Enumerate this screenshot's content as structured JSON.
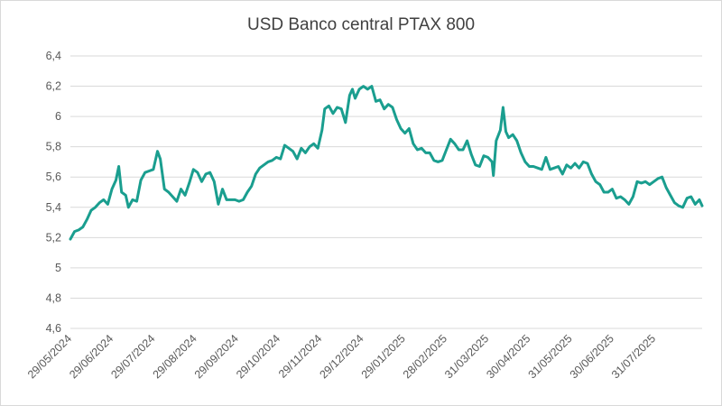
{
  "chart_data": {
    "type": "line",
    "title": "USD Banco central PTAX 800",
    "xlabel": "",
    "ylabel": "",
    "ylim": [
      4.6,
      6.4
    ],
    "grid": true,
    "legend": "none",
    "line_color": "#1a9e8f",
    "y_ticks": [
      "4,6",
      "4,8",
      "5",
      "5,2",
      "5,4",
      "5,6",
      "5,8",
      "6",
      "6,2",
      "6,4"
    ],
    "y_tick_values": [
      4.6,
      4.8,
      5.0,
      5.2,
      5.4,
      5.6,
      5.8,
      6.0,
      6.2,
      6.4
    ],
    "x_ticks": [
      "29/05/2024",
      "29/06/2024",
      "29/07/2024",
      "29/08/2024",
      "29/09/2024",
      "29/10/2024",
      "29/11/2024",
      "29/12/2024",
      "29/01/2025",
      "28/02/2025",
      "31/03/2025",
      "30/04/2025",
      "31/05/2025",
      "30/06/2025",
      "31/07/2025"
    ],
    "x_range": [
      "2024-05-29",
      "2025-08-29"
    ],
    "series": [
      {
        "points": [
          [
            "2024-05-29",
            5.19
          ],
          [
            "2024-06-01",
            5.24
          ],
          [
            "2024-06-04",
            5.25
          ],
          [
            "2024-06-07",
            5.27
          ],
          [
            "2024-06-10",
            5.32
          ],
          [
            "2024-06-13",
            5.38
          ],
          [
            "2024-06-16",
            5.4
          ],
          [
            "2024-06-19",
            5.43
          ],
          [
            "2024-06-22",
            5.45
          ],
          [
            "2024-06-25",
            5.42
          ],
          [
            "2024-06-28",
            5.52
          ],
          [
            "2024-07-01",
            5.58
          ],
          [
            "2024-07-03",
            5.67
          ],
          [
            "2024-07-05",
            5.5
          ],
          [
            "2024-07-08",
            5.48
          ],
          [
            "2024-07-10",
            5.4
          ],
          [
            "2024-07-13",
            5.45
          ],
          [
            "2024-07-16",
            5.44
          ],
          [
            "2024-07-19",
            5.58
          ],
          [
            "2024-07-22",
            5.63
          ],
          [
            "2024-07-25",
            5.64
          ],
          [
            "2024-07-28",
            5.65
          ],
          [
            "2024-07-31",
            5.77
          ],
          [
            "2024-08-02",
            5.72
          ],
          [
            "2024-08-05",
            5.52
          ],
          [
            "2024-08-08",
            5.5
          ],
          [
            "2024-08-11",
            5.47
          ],
          [
            "2024-08-14",
            5.44
          ],
          [
            "2024-08-17",
            5.52
          ],
          [
            "2024-08-20",
            5.48
          ],
          [
            "2024-08-23",
            5.56
          ],
          [
            "2024-08-26",
            5.65
          ],
          [
            "2024-08-29",
            5.63
          ],
          [
            "2024-09-01",
            5.57
          ],
          [
            "2024-09-04",
            5.62
          ],
          [
            "2024-09-07",
            5.63
          ],
          [
            "2024-09-10",
            5.57
          ],
          [
            "2024-09-13",
            5.42
          ],
          [
            "2024-09-16",
            5.52
          ],
          [
            "2024-09-19",
            5.45
          ],
          [
            "2024-09-22",
            5.45
          ],
          [
            "2024-09-25",
            5.45
          ],
          [
            "2024-09-28",
            5.44
          ],
          [
            "2024-10-01",
            5.45
          ],
          [
            "2024-10-04",
            5.5
          ],
          [
            "2024-10-07",
            5.54
          ],
          [
            "2024-10-10",
            5.62
          ],
          [
            "2024-10-13",
            5.66
          ],
          [
            "2024-10-16",
            5.68
          ],
          [
            "2024-10-19",
            5.7
          ],
          [
            "2024-10-22",
            5.71
          ],
          [
            "2024-10-25",
            5.73
          ],
          [
            "2024-10-28",
            5.72
          ],
          [
            "2024-10-31",
            5.81
          ],
          [
            "2024-11-03",
            5.79
          ],
          [
            "2024-11-06",
            5.77
          ],
          [
            "2024-11-09",
            5.72
          ],
          [
            "2024-11-12",
            5.79
          ],
          [
            "2024-11-15",
            5.76
          ],
          [
            "2024-11-18",
            5.8
          ],
          [
            "2024-11-21",
            5.82
          ],
          [
            "2024-11-24",
            5.79
          ],
          [
            "2024-11-27",
            5.91
          ],
          [
            "2024-11-29",
            6.05
          ],
          [
            "2024-12-02",
            6.07
          ],
          [
            "2024-12-05",
            6.02
          ],
          [
            "2024-12-08",
            6.06
          ],
          [
            "2024-12-11",
            6.05
          ],
          [
            "2024-12-14",
            5.96
          ],
          [
            "2024-12-17",
            6.14
          ],
          [
            "2024-12-19",
            6.18
          ],
          [
            "2024-12-21",
            6.12
          ],
          [
            "2024-12-24",
            6.18
          ],
          [
            "2024-12-27",
            6.2
          ],
          [
            "2024-12-30",
            6.18
          ],
          [
            "2025-01-02",
            6.2
          ],
          [
            "2025-01-05",
            6.1
          ],
          [
            "2025-01-08",
            6.11
          ],
          [
            "2025-01-11",
            6.05
          ],
          [
            "2025-01-14",
            6.08
          ],
          [
            "2025-01-17",
            6.06
          ],
          [
            "2025-01-20",
            5.98
          ],
          [
            "2025-01-23",
            5.92
          ],
          [
            "2025-01-26",
            5.89
          ],
          [
            "2025-01-29",
            5.92
          ],
          [
            "2025-02-01",
            5.82
          ],
          [
            "2025-02-04",
            5.78
          ],
          [
            "2025-02-07",
            5.79
          ],
          [
            "2025-02-10",
            5.76
          ],
          [
            "2025-02-13",
            5.76
          ],
          [
            "2025-02-16",
            5.71
          ],
          [
            "2025-02-19",
            5.7
          ],
          [
            "2025-02-22",
            5.71
          ],
          [
            "2025-02-25",
            5.78
          ],
          [
            "2025-02-28",
            5.85
          ],
          [
            "2025-03-03",
            5.82
          ],
          [
            "2025-03-06",
            5.78
          ],
          [
            "2025-03-09",
            5.78
          ],
          [
            "2025-03-12",
            5.84
          ],
          [
            "2025-03-15",
            5.75
          ],
          [
            "2025-03-18",
            5.68
          ],
          [
            "2025-03-21",
            5.67
          ],
          [
            "2025-03-24",
            5.74
          ],
          [
            "2025-03-27",
            5.73
          ],
          [
            "2025-03-30",
            5.7
          ],
          [
            "2025-03-31",
            5.61
          ],
          [
            "2025-04-02",
            5.84
          ],
          [
            "2025-04-05",
            5.91
          ],
          [
            "2025-04-07",
            6.06
          ],
          [
            "2025-04-09",
            5.9
          ],
          [
            "2025-04-11",
            5.86
          ],
          [
            "2025-04-14",
            5.88
          ],
          [
            "2025-04-17",
            5.84
          ],
          [
            "2025-04-20",
            5.76
          ],
          [
            "2025-04-23",
            5.7
          ],
          [
            "2025-04-26",
            5.67
          ],
          [
            "2025-04-29",
            5.67
          ],
          [
            "2025-05-02",
            5.66
          ],
          [
            "2025-05-05",
            5.65
          ],
          [
            "2025-05-08",
            5.73
          ],
          [
            "2025-05-11",
            5.65
          ],
          [
            "2025-05-14",
            5.66
          ],
          [
            "2025-05-17",
            5.67
          ],
          [
            "2025-05-20",
            5.62
          ],
          [
            "2025-05-23",
            5.68
          ],
          [
            "2025-05-26",
            5.66
          ],
          [
            "2025-05-29",
            5.69
          ],
          [
            "2025-06-01",
            5.66
          ],
          [
            "2025-06-04",
            5.7
          ],
          [
            "2025-06-07",
            5.69
          ],
          [
            "2025-06-10",
            5.62
          ],
          [
            "2025-06-13",
            5.57
          ],
          [
            "2025-06-16",
            5.55
          ],
          [
            "2025-06-19",
            5.5
          ],
          [
            "2025-06-22",
            5.5
          ],
          [
            "2025-06-25",
            5.52
          ],
          [
            "2025-06-28",
            5.46
          ],
          [
            "2025-07-01",
            5.47
          ],
          [
            "2025-07-04",
            5.45
          ],
          [
            "2025-07-07",
            5.42
          ],
          [
            "2025-07-10",
            5.47
          ],
          [
            "2025-07-13",
            5.57
          ],
          [
            "2025-07-16",
            5.56
          ],
          [
            "2025-07-19",
            5.57
          ],
          [
            "2025-07-22",
            5.55
          ],
          [
            "2025-07-25",
            5.57
          ],
          [
            "2025-07-28",
            5.59
          ],
          [
            "2025-07-31",
            5.6
          ],
          [
            "2025-08-03",
            5.53
          ],
          [
            "2025-08-06",
            5.48
          ],
          [
            "2025-08-09",
            5.43
          ],
          [
            "2025-08-12",
            5.41
          ],
          [
            "2025-08-15",
            5.4
          ],
          [
            "2025-08-18",
            5.46
          ],
          [
            "2025-08-21",
            5.47
          ],
          [
            "2025-08-24",
            5.42
          ],
          [
            "2025-08-27",
            5.45
          ],
          [
            "2025-08-29",
            5.41
          ]
        ]
      }
    ]
  }
}
